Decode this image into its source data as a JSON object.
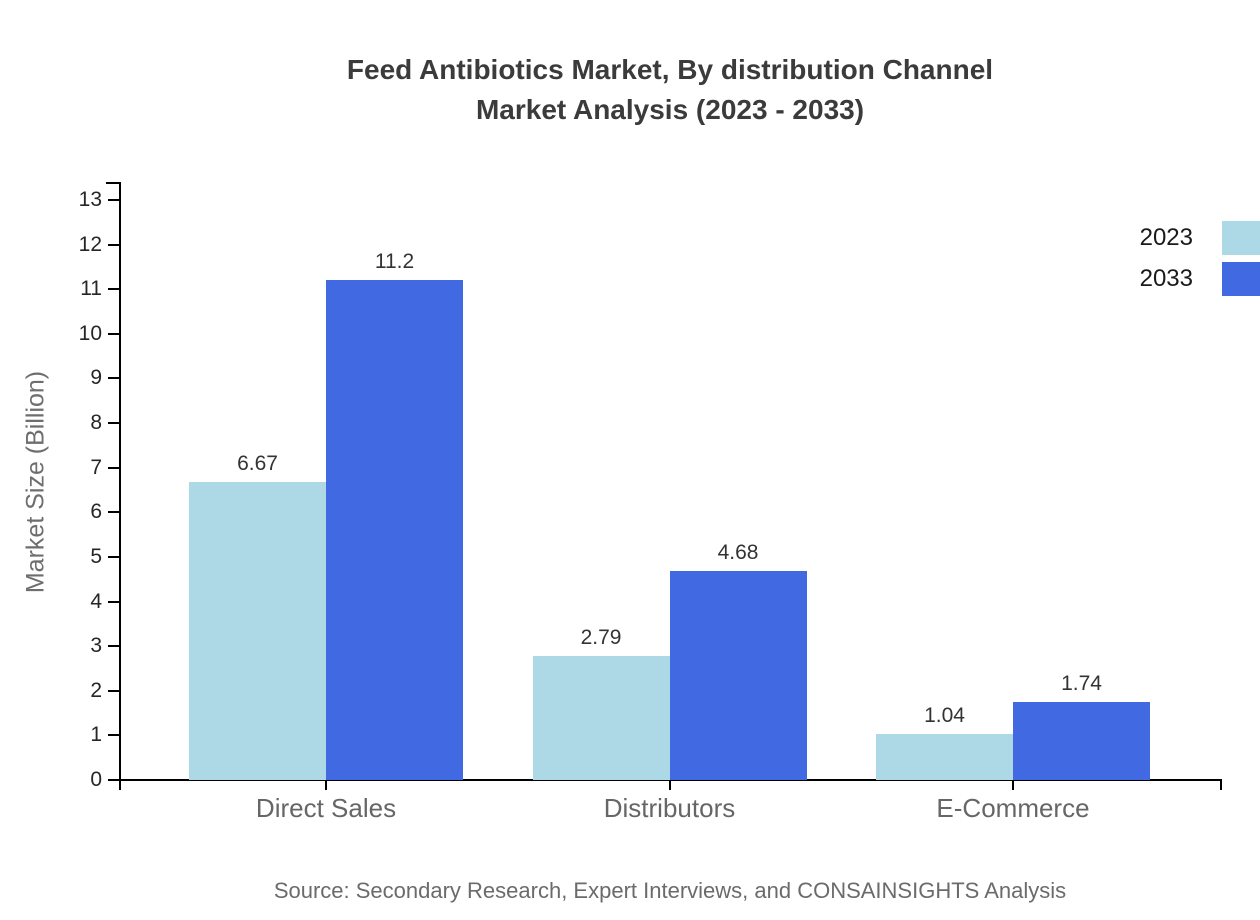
{
  "title": {
    "line1": "Feed Antibiotics Market, By distribution Channel",
    "line2": "Market Analysis (2023 - 2033)"
  },
  "source": "Source: Secondary Research, Expert Interviews, and CONSAINSIGHTS Analysis",
  "chart_data": {
    "type": "bar",
    "title": "Feed Antibiotics Market, By distribution Channel Market Analysis (2023 - 2033)",
    "categories": [
      "Direct Sales",
      "Distributors",
      "E-Commerce"
    ],
    "series": [
      {
        "name": "2023",
        "color": "#ADD8E6",
        "values": [
          6.67,
          2.79,
          1.04
        ]
      },
      {
        "name": "2033",
        "color": "#4169E1",
        "values": [
          11.2,
          4.68,
          1.74
        ]
      }
    ],
    "xlabel": "",
    "ylabel": "Market Size (Billion)",
    "ylim": [
      0,
      13
    ],
    "ytick_interval": 1,
    "yticks": [
      0,
      1,
      2,
      3,
      4,
      5,
      6,
      7,
      8,
      9,
      10,
      11,
      12,
      13
    ],
    "grid": false,
    "legend_position": "right-edge",
    "value_labels_shown": true,
    "axis_color": "#000000",
    "background": "#ffffff"
  }
}
